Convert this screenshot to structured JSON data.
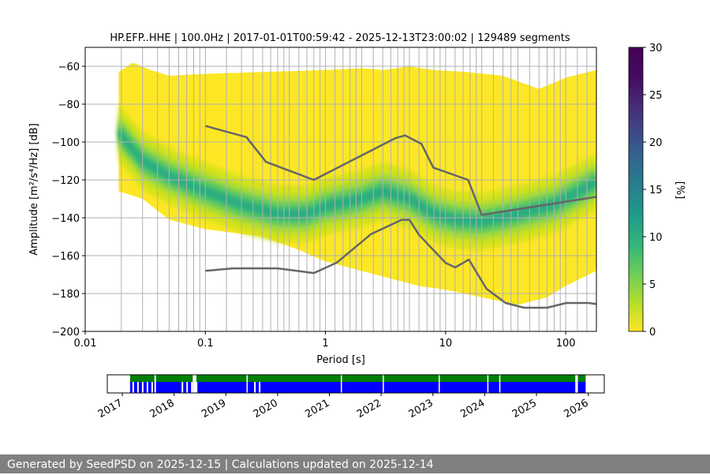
{
  "chart_data": [
    {
      "type": "heatmap",
      "title": "HP.EFP..HHE | 100.0Hz | 2017-01-01T00:59:42 - 2025-12-13T23:00:02 | 129489 segments",
      "xlabel": "Period [s]",
      "ylabel": "Amplitude [m²/s⁴/Hz] [dB]",
      "x_scale": "log",
      "xlim": [
        0.01,
        180
      ],
      "ylim": [
        -200,
        -50
      ],
      "x_ticks": [
        {
          "value": 0.01,
          "label": "0.01"
        },
        {
          "value": 0.1,
          "label": "0.1"
        },
        {
          "value": 1,
          "label": "1"
        },
        {
          "value": 10,
          "label": "10"
        },
        {
          "value": 100,
          "label": "100"
        }
      ],
      "y_ticks": [
        -60,
        -80,
        -100,
        -120,
        -140,
        -160,
        -180,
        -200
      ],
      "grid_x_periods": [
        0.02,
        0.03,
        0.04,
        0.05,
        0.06,
        0.07,
        0.08,
        0.09,
        0.1,
        0.15,
        0.2,
        0.25,
        0.3,
        0.35,
        0.4,
        0.45,
        0.5,
        0.6,
        0.7,
        0.8,
        0.9,
        1.0,
        1.2,
        1.4,
        1.6,
        1.8,
        2.0,
        2.5,
        3.0,
        3.5,
        4.0,
        4.5,
        5.0,
        6.0,
        7.0,
        8.0,
        9.0,
        10,
        12,
        14,
        16,
        18,
        20,
        25,
        30,
        35,
        40,
        50,
        60,
        70,
        80,
        90,
        100,
        125,
        150
      ],
      "grid_y": [
        -60,
        -80,
        -100,
        -120,
        -140,
        -160,
        -180
      ],
      "ppsd_upper_envelope": [
        [
          0.019,
          -63
        ],
        [
          0.025,
          -58
        ],
        [
          0.035,
          -62
        ],
        [
          0.05,
          -65
        ],
        [
          0.1,
          -64
        ],
        [
          0.3,
          -63
        ],
        [
          1,
          -62
        ],
        [
          2,
          -61
        ],
        [
          3,
          -62
        ],
        [
          5,
          -60
        ],
        [
          8,
          -62
        ],
        [
          15,
          -63
        ],
        [
          30,
          -65
        ],
        [
          60,
          -72
        ],
        [
          100,
          -66
        ],
        [
          180,
          -62
        ]
      ],
      "ppsd_lower_envelope": [
        [
          0.019,
          -126
        ],
        [
          0.03,
          -130
        ],
        [
          0.05,
          -141
        ],
        [
          0.1,
          -146
        ],
        [
          0.3,
          -150
        ],
        [
          0.6,
          -157
        ],
        [
          1,
          -163
        ],
        [
          3,
          -171
        ],
        [
          6,
          -176
        ],
        [
          10,
          -178
        ],
        [
          20,
          -182
        ],
        [
          40,
          -186
        ],
        [
          70,
          -182
        ],
        [
          100,
          -176
        ],
        [
          180,
          -168
        ]
      ],
      "ppsd_mode": [
        [
          0.019,
          -95
        ],
        [
          0.03,
          -110
        ],
        [
          0.05,
          -118
        ],
        [
          0.1,
          -126
        ],
        [
          0.2,
          -133
        ],
        [
          0.4,
          -138
        ],
        [
          0.7,
          -138
        ],
        [
          1,
          -134
        ],
        [
          2,
          -130
        ],
        [
          3,
          -126
        ],
        [
          5,
          -130
        ],
        [
          8,
          -138
        ],
        [
          12,
          -141
        ],
        [
          20,
          -142
        ],
        [
          40,
          -138
        ],
        [
          80,
          -133
        ],
        [
          180,
          -121
        ]
      ],
      "noise_model_high": [
        [
          0.1,
          -91.5
        ],
        [
          0.22,
          -97.4
        ],
        [
          0.32,
          -110.5
        ],
        [
          0.8,
          -120
        ],
        [
          3.8,
          -98
        ],
        [
          4.6,
          -96.5
        ],
        [
          6.3,
          -101
        ],
        [
          7.9,
          -113.5
        ],
        [
          15.4,
          -120
        ],
        [
          20,
          -138.5
        ],
        [
          354.8,
          -126
        ]
      ],
      "noise_model_low": [
        [
          0.1,
          -168
        ],
        [
          0.17,
          -166.7
        ],
        [
          0.4,
          -166.7
        ],
        [
          0.8,
          -169.2
        ],
        [
          1.24,
          -163.7
        ],
        [
          2.4,
          -148.6
        ],
        [
          4.3,
          -141.1
        ],
        [
          5,
          -141.1
        ],
        [
          6,
          -149
        ],
        [
          10,
          -163.8
        ],
        [
          12,
          -166.2
        ],
        [
          15.6,
          -162.1
        ],
        [
          21.9,
          -177.5
        ],
        [
          31.6,
          -185
        ],
        [
          45,
          -187.5
        ],
        [
          70,
          -187.5
        ],
        [
          101,
          -185
        ],
        [
          154,
          -185
        ],
        [
          328,
          -187.5
        ]
      ],
      "colorbar": {
        "label": "[%]",
        "ticks": [
          0,
          5,
          10,
          15,
          20,
          25,
          30
        ],
        "colormap": "viridis"
      },
      "colors": {
        "noise_model": "#666666",
        "grid": "#b0b0b0",
        "low_density": "#fde725"
      }
    },
    {
      "type": "timeline",
      "x_ticks": [
        "2017",
        "2018",
        "2019",
        "2020",
        "2021",
        "2022",
        "2023",
        "2024",
        "2025",
        "2026"
      ],
      "xlim": [
        2016.71,
        2026.31
      ],
      "data_start": 2017.15,
      "data_end": 2025.95,
      "coverage_gaps": [
        [
          2017.62,
          2017.65
        ],
        [
          2018.36,
          2018.43
        ],
        [
          2019.4,
          2019.41
        ],
        [
          2021.22,
          2021.23
        ],
        [
          2022.03,
          2022.04
        ],
        [
          2023.11,
          2023.12
        ],
        [
          2024.05,
          2024.06
        ],
        [
          2024.28,
          2024.3
        ],
        [
          2025.75,
          2025.8
        ]
      ],
      "coverage_sparse_ranges": [
        [
          2017.15,
          2017.6
        ],
        [
          2018.1,
          2018.5
        ],
        [
          2019.5,
          2019.65
        ]
      ],
      "colors": {
        "available": "#008000",
        "processed": "#0000ff"
      }
    }
  ],
  "footer": {
    "text": "Generated by SeedPSD on 2025-12-15 | Calculations updated on 2025-12-14"
  }
}
